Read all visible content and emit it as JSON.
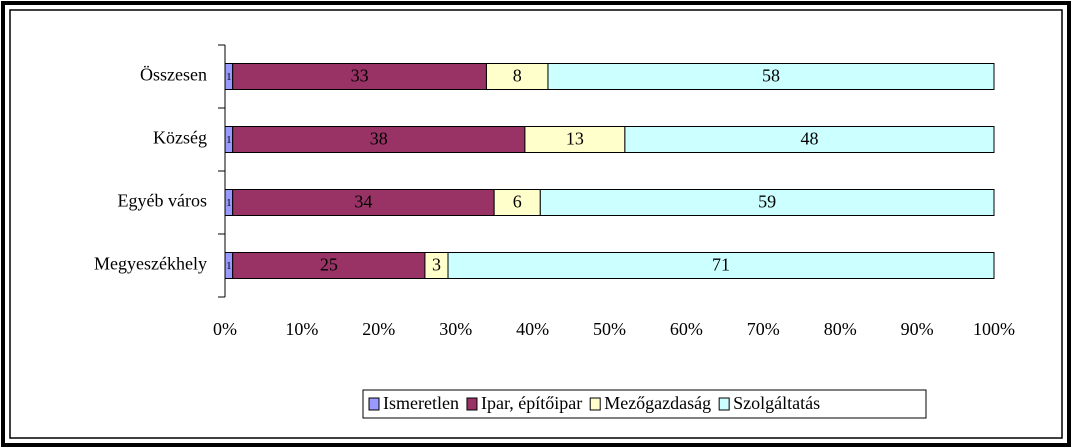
{
  "chart_data": {
    "type": "stacked_bar_horizontal",
    "categories": [
      "Összesen",
      "Község",
      "Egyéb város",
      "Megyeszékhely"
    ],
    "series": [
      {
        "name": "Ismeretlen",
        "color": "#9999ff",
        "values": [
          1,
          1,
          1,
          1
        ]
      },
      {
        "name": "Ipar, építőipar",
        "color": "#993366",
        "values": [
          33,
          38,
          34,
          25
        ]
      },
      {
        "name": "Mezőgazdaság",
        "color": "#ffffcc",
        "values": [
          8,
          13,
          6,
          3
        ]
      },
      {
        "name": "Szolgáltatás",
        "color": "#ccffff",
        "values": [
          58,
          48,
          59,
          71
        ]
      }
    ],
    "xlim": [
      0,
      100
    ],
    "xticks": [
      {
        "value": 0,
        "label": "0%"
      },
      {
        "value": 10,
        "label": "10%"
      },
      {
        "value": 20,
        "label": "20%"
      },
      {
        "value": 30,
        "label": "30%"
      },
      {
        "value": 40,
        "label": "40%"
      },
      {
        "value": 50,
        "label": "50%"
      },
      {
        "value": 60,
        "label": "60%"
      },
      {
        "value": 70,
        "label": "70%"
      },
      {
        "value": 80,
        "label": "80%"
      },
      {
        "value": 90,
        "label": "90%"
      },
      {
        "value": 100,
        "label": "100%"
      }
    ],
    "grid": false,
    "legend": "bottom"
  }
}
